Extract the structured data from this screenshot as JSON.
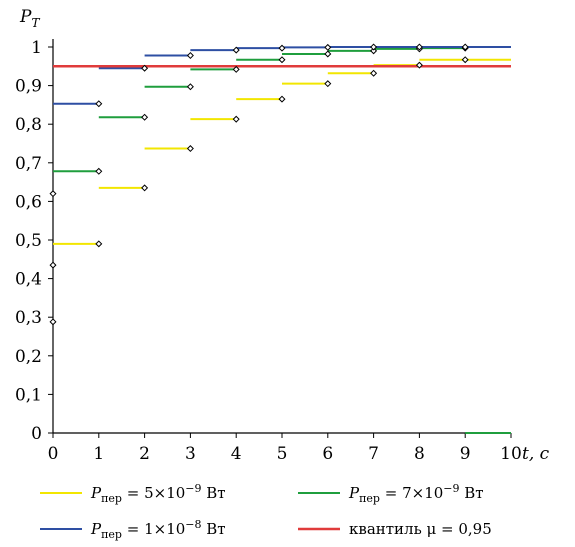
{
  "chart_data": {
    "type": "line",
    "step": true,
    "ylabel": "P",
    "ylabel_sub": "T",
    "xlabel": "t, с",
    "xlim": [
      0,
      10
    ],
    "ylim": [
      0,
      1
    ],
    "x_ticks": [
      "0",
      "1",
      "2",
      "3",
      "4",
      "5",
      "6",
      "7",
      "8",
      "9",
      "10"
    ],
    "y_ticks": [
      "0",
      "0,1",
      "0,2",
      "0,3",
      "0,4",
      "0,5",
      "0,6",
      "0,7",
      "0,8",
      "0,9",
      "1"
    ],
    "grid": false,
    "legend_position": "bottom",
    "series": [
      {
        "name": "P_пер = 5×10^-9 Вт",
        "legend_prefix": "P",
        "legend_sub": "пер",
        "legend_main": " = 5×10",
        "legend_sup": "−9",
        "legend_unit": " Вт",
        "color": "#f2e600",
        "x": [
          0,
          1,
          2,
          3,
          4,
          5,
          6,
          7,
          8,
          9
        ],
        "y": [
          0.49,
          0.635,
          0.737,
          0.813,
          0.865,
          0.905,
          0.932,
          0.953,
          0.967,
          0.967
        ]
      },
      {
        "name": "P_пер = 7×10^-9 Вт",
        "legend_prefix": "P",
        "legend_sub": "пер",
        "legend_main": " = 7×10",
        "legend_sup": "−9",
        "legend_unit": " Вт",
        "color": "#1f9e3d",
        "x": [
          0,
          1,
          2,
          3,
          4,
          5,
          6,
          7,
          8,
          9
        ],
        "y": [
          0.678,
          0.818,
          0.897,
          0.942,
          0.967,
          0.982,
          0.99,
          0.995,
          0.997,
          0.0
        ]
      },
      {
        "name": "P_пер = 1×10^-8 Вт",
        "legend_prefix": "P",
        "legend_sub": "пер",
        "legend_main": " = 1×10",
        "legend_sup": "−8",
        "legend_unit": " Вт",
        "color": "#2e4fa3",
        "x": [
          0,
          1,
          2,
          3,
          4,
          5,
          6,
          7,
          8,
          9
        ],
        "y": [
          0.853,
          0.945,
          0.978,
          0.992,
          0.997,
          0.999,
          1.0,
          1.0,
          1.0,
          1.0
        ]
      }
    ],
    "markers": [
      {
        "x": 0,
        "y": 0.288
      },
      {
        "x": 0,
        "y": 0.435
      },
      {
        "x": 0,
        "y": 0.62
      },
      {
        "x": 1,
        "y": 0.49
      },
      {
        "x": 2,
        "y": 0.635
      },
      {
        "x": 3,
        "y": 0.737
      },
      {
        "x": 4,
        "y": 0.813
      },
      {
        "x": 5,
        "y": 0.865
      },
      {
        "x": 6,
        "y": 0.905
      },
      {
        "x": 7,
        "y": 0.932
      },
      {
        "x": 8,
        "y": 0.953
      },
      {
        "x": 9,
        "y": 0.967
      },
      {
        "x": 1,
        "y": 0.678
      },
      {
        "x": 2,
        "y": 0.818
      },
      {
        "x": 3,
        "y": 0.897
      },
      {
        "x": 4,
        "y": 0.942
      },
      {
        "x": 5,
        "y": 0.967
      },
      {
        "x": 6,
        "y": 0.982
      },
      {
        "x": 7,
        "y": 0.99
      },
      {
        "x": 8,
        "y": 0.995
      },
      {
        "x": 9,
        "y": 0.997
      },
      {
        "x": 1,
        "y": 0.853
      },
      {
        "x": 2,
        "y": 0.945
      },
      {
        "x": 3,
        "y": 0.978
      },
      {
        "x": 4,
        "y": 0.992
      },
      {
        "x": 5,
        "y": 0.997
      },
      {
        "x": 6,
        "y": 0.999
      },
      {
        "x": 7,
        "y": 1.0
      },
      {
        "x": 8,
        "y": 1.0
      },
      {
        "x": 9,
        "y": 1.0
      }
    ],
    "reference_line": {
      "name": "квантиль μ = 0,95",
      "y": 0.95,
      "color": "#e03b3b"
    }
  }
}
